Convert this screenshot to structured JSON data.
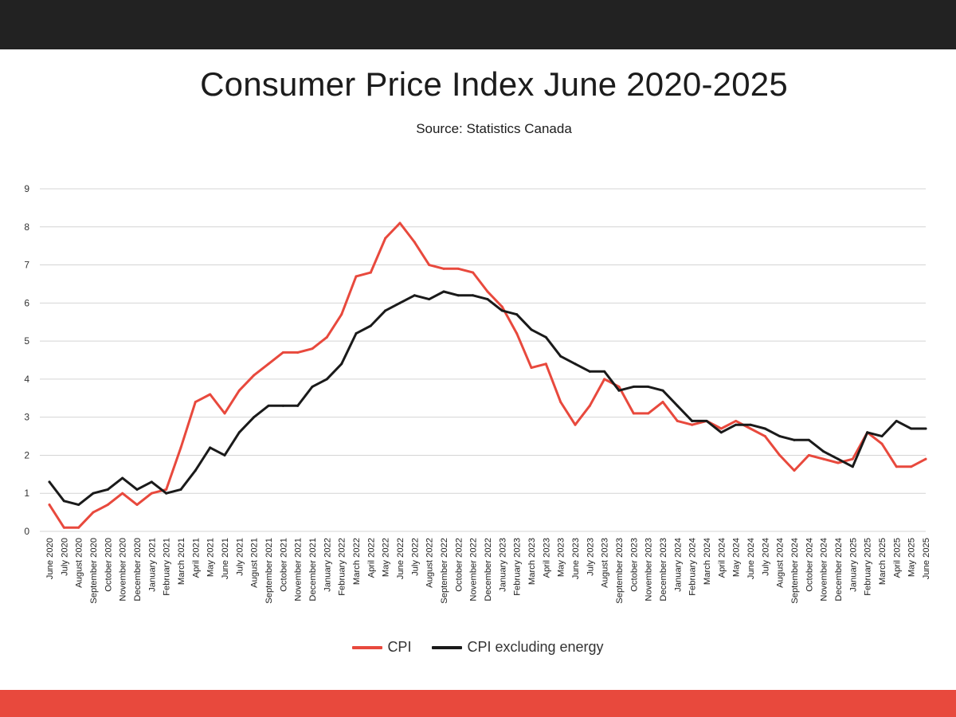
{
  "header": {},
  "chart_data": {
    "type": "line",
    "title": "Consumer Price Index June 2020-2025",
    "subtitle": "Source: Statistics Canada",
    "xlabel": "",
    "ylabel": "",
    "ylim": [
      0,
      9
    ],
    "yticks": [
      0,
      1,
      2,
      3,
      4,
      5,
      6,
      7,
      8,
      9
    ],
    "grid": true,
    "legend_position": "bottom-center",
    "categories": [
      "June 2020",
      "July 2020",
      "August 2020",
      "September 2020",
      "October 2020",
      "November 2020",
      "December 2020",
      "January 2021",
      "February 2021",
      "March 2021",
      "April 2021",
      "May 2021",
      "June 2021",
      "July 2021",
      "August 2021",
      "September 2021",
      "October 2021",
      "November 2021",
      "December 2021",
      "January 2022",
      "February 2022",
      "March 2022",
      "April 2022",
      "May 2022",
      "June 2022",
      "July 2022",
      "August 2022",
      "September 2022",
      "October 2022",
      "November 2022",
      "December 2022",
      "January 2023",
      "February 2023",
      "March 2023",
      "April 2023",
      "May 2023",
      "June 2023",
      "July 2023",
      "August 2023",
      "September 2023",
      "October 2023",
      "November 2023",
      "December 2023",
      "January 2024",
      "February 2024",
      "March 2024",
      "April 2024",
      "May 2024",
      "June 2024",
      "July 2024",
      "August 2024",
      "September 2024",
      "October 2024",
      "November 2024",
      "December 2024",
      "January 2025",
      "February 2025",
      "March 2025",
      "April 2025",
      "May 2025",
      "June 2025"
    ],
    "series": [
      {
        "name": "CPI",
        "color": "#e8493d",
        "values": [
          0.7,
          0.1,
          0.1,
          0.5,
          0.7,
          1.0,
          0.7,
          1.0,
          1.1,
          2.2,
          3.4,
          3.6,
          3.1,
          3.7,
          4.1,
          4.4,
          4.7,
          4.7,
          4.8,
          5.1,
          5.7,
          6.7,
          6.8,
          7.7,
          8.1,
          7.6,
          7.0,
          6.9,
          6.9,
          6.8,
          6.3,
          5.9,
          5.2,
          4.3,
          4.4,
          3.4,
          2.8,
          3.3,
          4.0,
          3.8,
          3.1,
          3.1,
          3.4,
          2.9,
          2.8,
          2.9,
          2.7,
          2.9,
          2.7,
          2.5,
          2.0,
          1.6,
          2.0,
          1.9,
          1.8,
          1.9,
          2.6,
          2.3,
          1.7,
          1.7,
          1.9
        ]
      },
      {
        "name": "CPI excluding energy",
        "color": "#1a1a1a",
        "values": [
          1.3,
          0.8,
          0.7,
          1.0,
          1.1,
          1.4,
          1.1,
          1.3,
          1.0,
          1.1,
          1.6,
          2.2,
          2.0,
          2.6,
          3.0,
          3.3,
          3.3,
          3.3,
          3.8,
          4.0,
          4.4,
          5.2,
          5.4,
          5.8,
          6.0,
          6.2,
          6.1,
          6.3,
          6.2,
          6.2,
          6.1,
          5.8,
          5.7,
          5.3,
          5.1,
          4.6,
          4.4,
          4.2,
          4.2,
          3.7,
          3.8,
          3.8,
          3.7,
          3.3,
          2.9,
          2.9,
          2.6,
          2.8,
          2.8,
          2.7,
          2.5,
          2.4,
          2.4,
          2.1,
          1.9,
          1.7,
          2.6,
          2.5,
          2.9,
          2.7,
          2.7
        ]
      }
    ]
  }
}
